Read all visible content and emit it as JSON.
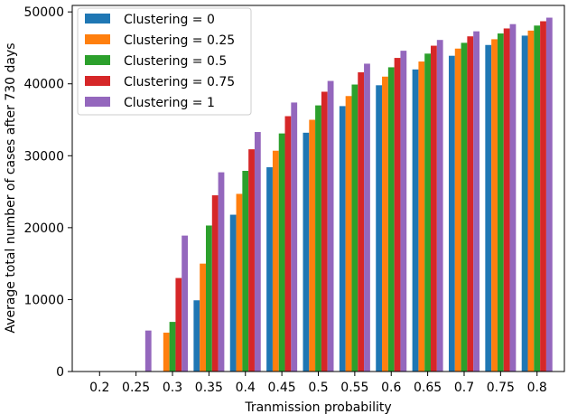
{
  "chart_data": {
    "type": "bar",
    "title": "",
    "xlabel": "Tranmission probability",
    "ylabel": "Average total number of cases after 730 days",
    "categories": [
      "0.2",
      "0.25",
      "0.3",
      "0.35",
      "0.4",
      "0.45",
      "0.5",
      "0.55",
      "0.6",
      "0.65",
      "0.7",
      "0.75",
      "0.8"
    ],
    "ylim": [
      0,
      50000
    ],
    "yticks": [
      0,
      10000,
      20000,
      30000,
      40000,
      50000
    ],
    "grid": false,
    "legend_position": "top-left",
    "series": [
      {
        "name": "Clustering = 0",
        "color": "#1f77b4",
        "values": [
          0,
          0,
          0,
          9900,
          21800,
          28400,
          33200,
          36900,
          39800,
          42000,
          43900,
          45400,
          46700
        ]
      },
      {
        "name": "Clustering = 0.25",
        "color": "#ff7f0e",
        "values": [
          0,
          0,
          5400,
          15000,
          24700,
          30700,
          35000,
          38300,
          41000,
          43100,
          44900,
          46200,
          47400
        ]
      },
      {
        "name": "Clustering = 0.5",
        "color": "#2ca02c",
        "values": [
          0,
          0,
          6900,
          20300,
          27900,
          33100,
          37000,
          39900,
          42300,
          44200,
          45700,
          47000,
          48100
        ]
      },
      {
        "name": "Clustering = 0.75",
        "color": "#d62728",
        "values": [
          0,
          0,
          13000,
          24500,
          30900,
          35500,
          38900,
          41600,
          43600,
          45300,
          46600,
          47700,
          48700
        ]
      },
      {
        "name": "Clustering = 1",
        "color": "#9467bd",
        "values": [
          0,
          5700,
          18900,
          27700,
          33300,
          37400,
          40400,
          42800,
          44600,
          46100,
          47300,
          48300,
          49200
        ]
      }
    ]
  }
}
